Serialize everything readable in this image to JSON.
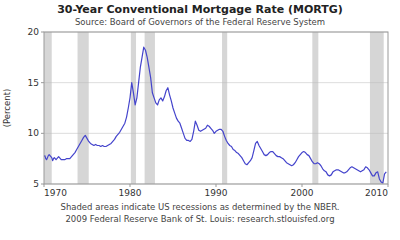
{
  "chart_data": {
    "type": "line",
    "title": "30-Year Conventional Mortgage Rate (MORTG)",
    "subtitle": "Source:  Board of Governors of the Federal Reserve System",
    "y_label": "(Percent)",
    "annotations": [
      "Shaded areas indicate US recessions as determined by the NBER.",
      "2009 Federal Reserve Bank of St. Louis:  research.stlouisfed.org"
    ],
    "xlim": [
      1970,
      2010
    ],
    "ylim": [
      5,
      20
    ],
    "xticks": [
      1970,
      1980,
      1990,
      2000,
      2010
    ],
    "yticks": [
      5,
      10,
      15,
      20
    ],
    "grid": true,
    "color": "#4444cc",
    "recessions": [
      [
        1969.9,
        1970.9
      ],
      [
        1973.9,
        1975.2
      ],
      [
        1980.1,
        1980.7
      ],
      [
        1981.7,
        1982.9
      ],
      [
        1990.7,
        1991.3
      ],
      [
        2001.2,
        2001.9
      ],
      [
        2007.9,
        2009.5
      ]
    ],
    "x": [
      1970.0,
      1970.1,
      1970.2,
      1970.3,
      1970.4,
      1970.5,
      1970.6,
      1970.7,
      1970.8,
      1970.9,
      1971.0,
      1971.1,
      1971.2,
      1971.3,
      1971.4,
      1971.5,
      1971.6,
      1971.7,
      1971.8,
      1971.9,
      1972.0,
      1972.2,
      1972.4,
      1972.6,
      1972.8,
      1973.0,
      1973.2,
      1973.4,
      1973.6,
      1973.8,
      1974.0,
      1974.2,
      1974.4,
      1974.6,
      1974.8,
      1975.0,
      1975.2,
      1975.4,
      1975.6,
      1975.8,
      1976.0,
      1976.2,
      1976.4,
      1976.6,
      1976.8,
      1977.0,
      1977.2,
      1977.4,
      1977.6,
      1977.8,
      1978.0,
      1978.2,
      1978.4,
      1978.6,
      1978.8,
      1979.0,
      1979.2,
      1979.4,
      1979.6,
      1979.8,
      1980.0,
      1980.2,
      1980.4,
      1980.6,
      1980.8,
      1981.0,
      1981.2,
      1981.4,
      1981.6,
      1981.8,
      1982.0,
      1982.2,
      1982.4,
      1982.6,
      1982.8,
      1983.0,
      1983.2,
      1983.4,
      1983.6,
      1983.8,
      1984.0,
      1984.2,
      1984.4,
      1984.6,
      1984.8,
      1985.0,
      1985.2,
      1985.4,
      1985.6,
      1985.8,
      1986.0,
      1986.2,
      1986.4,
      1986.6,
      1986.8,
      1987.0,
      1987.2,
      1987.4,
      1987.6,
      1987.8,
      1988.0,
      1988.2,
      1988.4,
      1988.6,
      1988.8,
      1989.0,
      1989.2,
      1989.4,
      1989.6,
      1989.8,
      1990.0,
      1990.2,
      1990.4,
      1990.6,
      1990.8,
      1991.0,
      1991.2,
      1991.4,
      1991.6,
      1991.8,
      1992.0,
      1992.2,
      1992.4,
      1992.6,
      1992.8,
      1993.0,
      1993.2,
      1993.4,
      1993.6,
      1993.8,
      1994.0,
      1994.2,
      1994.4,
      1994.6,
      1994.8,
      1995.0,
      1995.2,
      1995.4,
      1995.6,
      1995.8,
      1996.0,
      1996.2,
      1996.4,
      1996.6,
      1996.8,
      1997.0,
      1997.2,
      1997.4,
      1997.6,
      1997.8,
      1998.0,
      1998.2,
      1998.4,
      1998.6,
      1998.8,
      1999.0,
      1999.2,
      1999.4,
      1999.6,
      1999.8,
      2000.0,
      2000.2,
      2000.4,
      2000.6,
      2000.8,
      2001.0,
      2001.2,
      2001.4,
      2001.6,
      2001.8,
      2002.0,
      2002.2,
      2002.4,
      2002.6,
      2002.8,
      2003.0,
      2003.2,
      2003.4,
      2003.6,
      2003.8,
      2004.0,
      2004.2,
      2004.4,
      2004.6,
      2004.8,
      2005.0,
      2005.2,
      2005.4,
      2005.6,
      2005.8,
      2006.0,
      2006.2,
      2006.4,
      2006.6,
      2006.8,
      2007.0,
      2007.2,
      2007.4,
      2007.6,
      2007.8,
      2008.0,
      2008.2,
      2008.4,
      2008.6,
      2008.8,
      2009.0,
      2009.2,
      2009.4,
      2009.6,
      2009.8
    ],
    "values": [
      7.7,
      7.8,
      7.5,
      7.4,
      7.6,
      7.8,
      7.9,
      7.8,
      7.7,
      7.6,
      7.3,
      7.5,
      7.6,
      7.5,
      7.4,
      7.5,
      7.6,
      7.7,
      7.6,
      7.5,
      7.4,
      7.4,
      7.4,
      7.5,
      7.5,
      7.5,
      7.7,
      7.9,
      8.1,
      8.4,
      8.7,
      9.0,
      9.3,
      9.6,
      9.8,
      9.5,
      9.2,
      9.0,
      8.9,
      8.8,
      8.9,
      8.8,
      8.8,
      8.7,
      8.8,
      8.7,
      8.7,
      8.8,
      8.9,
      9.0,
      9.2,
      9.4,
      9.7,
      9.9,
      10.1,
      10.4,
      10.7,
      11.0,
      11.6,
      12.5,
      13.5,
      15.0,
      14.0,
      12.8,
      13.5,
      15.0,
      16.5,
      17.5,
      18.5,
      18.2,
      17.5,
      16.5,
      15.5,
      14.0,
      13.5,
      13.0,
      12.8,
      13.3,
      13.5,
      13.2,
      13.6,
      14.2,
      14.5,
      13.8,
      13.2,
      12.5,
      12.0,
      11.5,
      11.2,
      11.0,
      10.5,
      10.0,
      9.5,
      9.3,
      9.3,
      9.2,
      9.4,
      10.2,
      11.2,
      10.8,
      10.3,
      10.2,
      10.3,
      10.4,
      10.5,
      10.8,
      10.7,
      10.5,
      10.3,
      10.0,
      10.2,
      10.3,
      10.4,
      10.4,
      10.2,
      9.7,
      9.3,
      9.0,
      8.8,
      8.7,
      8.4,
      8.3,
      8.1,
      8.0,
      7.8,
      7.6,
      7.3,
      7.0,
      6.9,
      7.1,
      7.3,
      7.6,
      8.3,
      9.0,
      9.2,
      8.8,
      8.5,
      8.2,
      7.9,
      7.8,
      7.9,
      8.1,
      8.2,
      8.2,
      8.0,
      7.8,
      7.7,
      7.7,
      7.6,
      7.5,
      7.3,
      7.1,
      7.0,
      6.9,
      6.8,
      6.9,
      7.1,
      7.4,
      7.7,
      7.9,
      8.1,
      8.2,
      8.1,
      7.9,
      7.8,
      7.5,
      7.2,
      7.0,
      7.0,
      7.1,
      7.0,
      6.8,
      6.5,
      6.3,
      6.2,
      5.9,
      5.8,
      5.9,
      6.2,
      6.3,
      6.4,
      6.4,
      6.3,
      6.2,
      6.1,
      6.1,
      6.2,
      6.4,
      6.6,
      6.7,
      6.6,
      6.5,
      6.4,
      6.3,
      6.2,
      6.3,
      6.4,
      6.7,
      6.6,
      6.4,
      6.1,
      5.8,
      5.8,
      6.1,
      6.2,
      5.5,
      5.2,
      5.1,
      6.0,
      6.2
    ]
  }
}
